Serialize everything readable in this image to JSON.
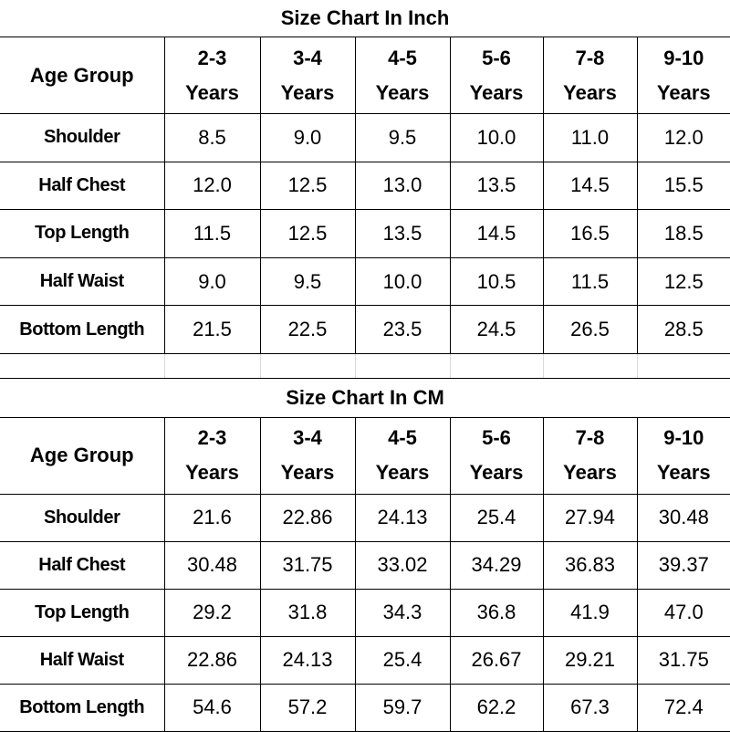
{
  "tables": [
    {
      "title": "Size Chart In Inch",
      "header": {
        "label": "Age Group",
        "columns": [
          {
            "range": "2-3",
            "unit": "Years"
          },
          {
            "range": "3-4",
            "unit": "Years"
          },
          {
            "range": "4-5",
            "unit": "Years"
          },
          {
            "range": "5-6",
            "unit": "Years"
          },
          {
            "range": "7-8",
            "unit": "Years"
          },
          {
            "range": "9-10",
            "unit": "Years"
          }
        ]
      },
      "rows": [
        {
          "label": "Shoulder",
          "values": [
            "8.5",
            "9.0",
            "9.5",
            "10.0",
            "11.0",
            "12.0"
          ]
        },
        {
          "label": "Half Chest",
          "values": [
            "12.0",
            "12.5",
            "13.0",
            "13.5",
            "14.5",
            "15.5"
          ]
        },
        {
          "label": "Top Length",
          "values": [
            "11.5",
            "12.5",
            "13.5",
            "14.5",
            "16.5",
            "18.5"
          ]
        },
        {
          "label": "Half Waist",
          "values": [
            "9.0",
            "9.5",
            "10.0",
            "10.5",
            "11.5",
            "12.5"
          ]
        },
        {
          "label": "Bottom Length",
          "values": [
            "21.5",
            "22.5",
            "23.5",
            "24.5",
            "26.5",
            "28.5"
          ]
        }
      ]
    },
    {
      "title": "Size Chart In CM",
      "header": {
        "label": "Age Group",
        "columns": [
          {
            "range": "2-3",
            "unit": "Years"
          },
          {
            "range": "3-4",
            "unit": "Years"
          },
          {
            "range": "4-5",
            "unit": "Years"
          },
          {
            "range": "5-6",
            "unit": "Years"
          },
          {
            "range": "7-8",
            "unit": "Years"
          },
          {
            "range": "9-10",
            "unit": "Years"
          }
        ]
      },
      "rows": [
        {
          "label": "Shoulder",
          "values": [
            "21.6",
            "22.86",
            "24.13",
            "25.4",
            "27.94",
            "30.48"
          ]
        },
        {
          "label": "Half Chest",
          "values": [
            "30.48",
            "31.75",
            "33.02",
            "34.29",
            "36.83",
            "39.37"
          ]
        },
        {
          "label": "Top Length",
          "values": [
            "29.2",
            "31.8",
            "34.3",
            "36.8",
            "41.9",
            "47.0"
          ]
        },
        {
          "label": "Half Waist",
          "values": [
            "22.86",
            "24.13",
            "25.4",
            "26.67",
            "29.21",
            "31.75"
          ]
        },
        {
          "label": "Bottom Length",
          "values": [
            "54.6",
            "57.2",
            "59.7",
            "62.2",
            "67.3",
            "72.4"
          ]
        }
      ]
    }
  ]
}
